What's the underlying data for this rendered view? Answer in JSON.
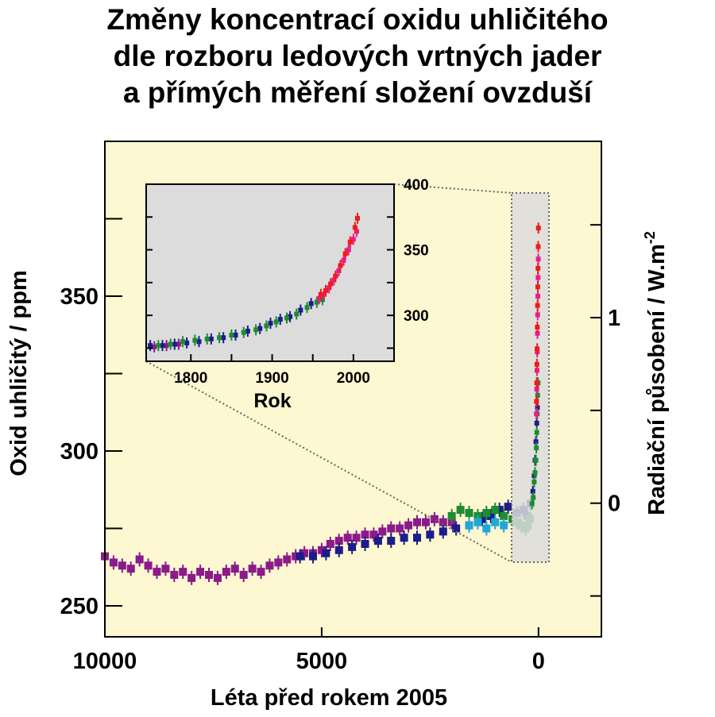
{
  "title_lines": [
    "Změny koncentrací oxidu uhličitého",
    "dle rozboru ledových vrtných jader",
    "a přímých měření složení ovzduší"
  ],
  "colors": {
    "plot_background": "#fdf7d2",
    "inset_background": "#dcdcdc",
    "purple_series": "#8b1a8b",
    "navy_series": "#1c1c8a",
    "green_series": "#1e8c32",
    "cyan_series": "#22a6d6",
    "red_series": "#ee1c1c",
    "magenta_series": "#ec1c8c"
  },
  "chart_data": [
    {
      "type": "scatter",
      "xlabel": "Léta před rokem 2005",
      "ylabel": "Oxid uhličitý  /  ppm",
      "y2label": "Radiační působení  /  W.m",
      "y2label_sup": "-2",
      "xlim": [
        10000,
        -1450
      ],
      "ylim": [
        240,
        400
      ],
      "y2lim": [
        -0.72,
        1.95
      ],
      "x_ticks": [
        10000,
        5000,
        0
      ],
      "x_tick_labels": [
        "10000",
        "5000",
        "0"
      ],
      "y_ticks": [
        250,
        275,
        300,
        325,
        350,
        375
      ],
      "y_tick_labels": [
        "250",
        "",
        "300",
        "",
        "350",
        ""
      ],
      "y2_ticks": [
        -0.5,
        0,
        0.5,
        1,
        1.5
      ],
      "y2_tick_labels": [
        "",
        "0",
        "",
        "1",
        ""
      ],
      "series": [
        {
          "color": "#8b1a8b",
          "points": [
            [
              10000,
              266
            ],
            [
              9800,
              264
            ],
            [
              9600,
              263
            ],
            [
              9400,
              262
            ],
            [
              9200,
              265
            ],
            [
              9000,
              263
            ],
            [
              8800,
              261
            ],
            [
              8600,
              262
            ],
            [
              8400,
              260
            ],
            [
              8200,
              261
            ],
            [
              8000,
              259
            ],
            [
              7800,
              261
            ],
            [
              7600,
              260
            ],
            [
              7400,
              259
            ],
            [
              7200,
              261
            ],
            [
              7000,
              262
            ],
            [
              6800,
              260
            ],
            [
              6600,
              262
            ],
            [
              6400,
              261
            ],
            [
              6200,
              263
            ],
            [
              6000,
              264
            ],
            [
              5800,
              265
            ],
            [
              5600,
              266
            ],
            [
              5400,
              267
            ],
            [
              5200,
              267
            ],
            [
              5000,
              268
            ],
            [
              4800,
              270
            ],
            [
              4600,
              271
            ],
            [
              4400,
              272
            ],
            [
              4200,
              272
            ],
            [
              4000,
              273
            ],
            [
              3800,
              273
            ],
            [
              3600,
              274
            ],
            [
              3400,
              275
            ],
            [
              3200,
              275
            ],
            [
              3000,
              276
            ],
            [
              2800,
              277
            ],
            [
              2600,
              277
            ],
            [
              2400,
              278
            ],
            [
              2200,
              277
            ],
            [
              2000,
              277
            ]
          ]
        },
        {
          "color": "#1c1c8a",
          "points": [
            [
              5500,
              266
            ],
            [
              5200,
              266
            ],
            [
              4900,
              267
            ],
            [
              4600,
              268
            ],
            [
              4300,
              269
            ],
            [
              4000,
              270
            ],
            [
              3700,
              271
            ],
            [
              3400,
              271
            ],
            [
              3100,
              272
            ],
            [
              2800,
              272
            ],
            [
              2500,
              273
            ],
            [
              2200,
              274
            ],
            [
              1900,
              275
            ],
            [
              1600,
              276
            ],
            [
              1300,
              278
            ],
            [
              1100,
              279
            ],
            [
              900,
              281
            ],
            [
              700,
              282
            ],
            [
              500,
              280
            ],
            [
              350,
              281
            ],
            [
              250,
              279
            ],
            [
              180,
              283
            ],
            [
              130,
              287
            ],
            [
              100,
              292
            ],
            [
              80,
              297
            ],
            [
              60,
              303
            ],
            [
              40,
              309
            ],
            [
              25,
              314
            ]
          ]
        },
        {
          "color": "#1e8c32",
          "points": [
            [
              2000,
              279
            ],
            [
              1800,
              281
            ],
            [
              1600,
              280
            ],
            [
              1400,
              279
            ],
            [
              1200,
              280
            ],
            [
              1000,
              281
            ],
            [
              800,
              279
            ],
            [
              600,
              278
            ],
            [
              500,
              277
            ],
            [
              400,
              276
            ],
            [
              300,
              275
            ],
            [
              250,
              276
            ],
            [
              200,
              278
            ],
            [
              150,
              283
            ],
            [
              120,
              285
            ],
            [
              100,
              290
            ],
            [
              80,
              293
            ],
            [
              60,
              297
            ],
            [
              50,
              301
            ],
            [
              40,
              306
            ],
            [
              30,
              312
            ],
            [
              20,
              318
            ],
            [
              10,
              322
            ]
          ]
        },
        {
          "color": "#22a6d6",
          "points": [
            [
              1600,
              276
            ],
            [
              1400,
              277
            ],
            [
              1200,
              275
            ],
            [
              1000,
              277
            ],
            [
              800,
              276
            ]
          ]
        },
        {
          "color": "#ec1c8c",
          "points": [
            [
              50,
              312
            ],
            [
              45,
              316
            ],
            [
              40,
              320
            ],
            [
              35,
              326
            ],
            [
              30,
              332
            ],
            [
              25,
              338
            ],
            [
              20,
              344
            ],
            [
              15,
              350
            ],
            [
              10,
              356
            ],
            [
              5,
              362
            ]
          ]
        },
        {
          "color": "#ee1c1c",
          "points": [
            [
              47,
              316
            ],
            [
              42,
              322
            ],
            [
              37,
              328
            ],
            [
              32,
              333
            ],
            [
              27,
              340
            ],
            [
              22,
              347
            ],
            [
              17,
              353
            ],
            [
              12,
              359
            ],
            [
              7,
              366
            ],
            [
              2,
              372
            ]
          ]
        }
      ]
    },
    {
      "type": "scatter",
      "xlabel": "Rok",
      "xlim": [
        1745,
        2050
      ],
      "ylim": [
        265,
        400
      ],
      "x_ticks": [
        1800,
        1850,
        1900,
        1950,
        2000
      ],
      "x_tick_labels": [
        "1800",
        "",
        "1900",
        "",
        "2000"
      ],
      "y_ticks": [
        275,
        300,
        325,
        350,
        375,
        400
      ],
      "y_tick_labels": [
        "",
        "300",
        "",
        "350",
        "",
        "400"
      ],
      "series": [
        {
          "color": "#8b1a8b",
          "points": [
            [
              1755,
              276
            ],
            [
              1770,
              277
            ],
            [
              1785,
              278
            ]
          ]
        },
        {
          "color": "#1c1c8a",
          "points": [
            [
              1750,
              277
            ],
            [
              1765,
              277
            ],
            [
              1780,
              278
            ],
            [
              1795,
              279
            ],
            [
              1810,
              280
            ],
            [
              1825,
              282
            ],
            [
              1840,
              283
            ],
            [
              1855,
              285
            ],
            [
              1870,
              288
            ],
            [
              1885,
              290
            ],
            [
              1898,
              294
            ],
            [
              1910,
              297
            ],
            [
              1922,
              299
            ],
            [
              1935,
              304
            ],
            [
              1948,
              309
            ]
          ]
        },
        {
          "color": "#1e8c32",
          "points": [
            [
              1760,
              277
            ],
            [
              1775,
              278
            ],
            [
              1790,
              280
            ],
            [
              1805,
              281
            ],
            [
              1820,
              282
            ],
            [
              1835,
              283
            ],
            [
              1850,
              285
            ],
            [
              1865,
              287
            ],
            [
              1880,
              289
            ],
            [
              1893,
              292
            ],
            [
              1905,
              295
            ],
            [
              1918,
              298
            ],
            [
              1930,
              301
            ],
            [
              1943,
              306
            ],
            [
              1955,
              310
            ],
            [
              1962,
              312
            ]
          ]
        },
        {
          "color": "#ec1c8c",
          "points": [
            [
              1958,
              313
            ],
            [
              1964,
              316
            ],
            [
              1970,
              321
            ],
            [
              1976,
              327
            ],
            [
              1982,
              334
            ],
            [
              1988,
              342
            ],
            [
              1994,
              350
            ],
            [
              2000,
              358
            ],
            [
              2004,
              364
            ]
          ]
        },
        {
          "color": "#ee1c1c",
          "points": [
            [
              1960,
              316
            ],
            [
              1966,
              319
            ],
            [
              1972,
              324
            ],
            [
              1978,
              330
            ],
            [
              1984,
              338
            ],
            [
              1990,
              347
            ],
            [
              1996,
              356
            ],
            [
              2002,
              367
            ],
            [
              2005,
              374
            ]
          ]
        }
      ]
    }
  ]
}
